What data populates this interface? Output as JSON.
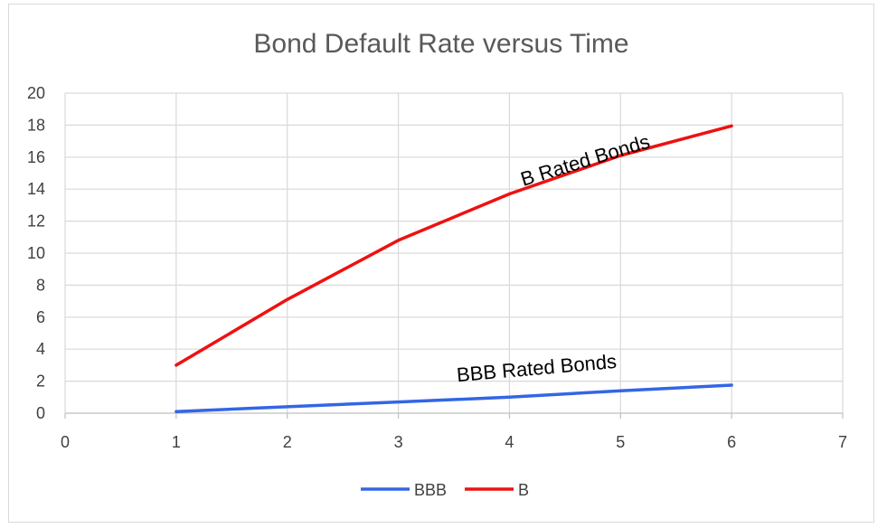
{
  "chart_data": {
    "type": "line",
    "title": "Bond Default Rate versus Time",
    "xlabel": "",
    "ylabel": "",
    "xlim": [
      0,
      7
    ],
    "ylim": [
      0,
      20
    ],
    "x_ticks": [
      "0",
      "1",
      "2",
      "3",
      "4",
      "5",
      "6",
      "7"
    ],
    "y_ticks": [
      "0",
      "2",
      "4",
      "6",
      "8",
      "10",
      "12",
      "14",
      "16",
      "18",
      "20"
    ],
    "grid": true,
    "legend_position": "bottom",
    "series": [
      {
        "name": "BBB",
        "color": "#3366e6",
        "x": [
          1,
          2,
          3,
          4,
          5,
          6
        ],
        "y": [
          0.1,
          0.4,
          0.7,
          1.0,
          1.4,
          1.75
        ]
      },
      {
        "name": "B",
        "color": "#ee1111",
        "x": [
          1,
          2,
          3,
          4,
          5,
          6
        ],
        "y": [
          3.0,
          7.1,
          10.8,
          13.7,
          16.1,
          17.95
        ]
      }
    ],
    "annotations": [
      {
        "text": "B Rated Bonds",
        "x": 4.7,
        "y": 15.4,
        "angle": -17
      },
      {
        "text": "BBB Rated Bonds",
        "x": 4.25,
        "y": 2.4,
        "angle": -5
      }
    ]
  }
}
